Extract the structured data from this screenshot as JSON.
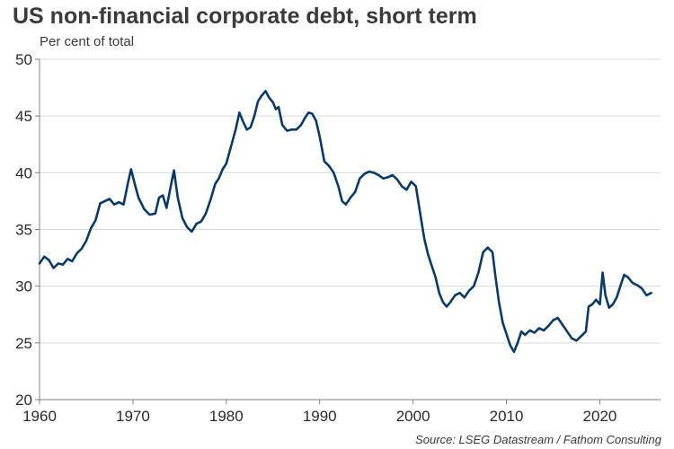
{
  "title": "US non-financial corporate debt, short term",
  "subtitle": "Per cent of total",
  "source": "Source: LSEG Datastream / Fathom Consulting",
  "colors": {
    "line": "#0b3a67",
    "grid": "#d9d9d9",
    "axis": "#7f7f7f",
    "text": "#3a3a3a"
  },
  "chart_data": {
    "type": "line",
    "title": "US non-financial corporate debt, short term",
    "ylabel": "Per cent of total",
    "xlim": [
      1960,
      2026.5
    ],
    "ylim": [
      20,
      50
    ],
    "x_ticks": [
      1960,
      1970,
      1980,
      1990,
      2000,
      2010,
      2020
    ],
    "y_ticks": [
      20,
      25,
      30,
      35,
      40,
      45,
      50
    ],
    "grid": "horizontal",
    "series": [
      {
        "values": [
          [
            1960.0,
            32.0
          ],
          [
            1960.5,
            32.6
          ],
          [
            1961.0,
            32.3
          ],
          [
            1961.5,
            31.6
          ],
          [
            1962.0,
            32.0
          ],
          [
            1962.5,
            31.9
          ],
          [
            1963.0,
            32.4
          ],
          [
            1963.5,
            32.2
          ],
          [
            1964.0,
            32.9
          ],
          [
            1964.5,
            33.3
          ],
          [
            1965.0,
            34.0
          ],
          [
            1965.5,
            35.1
          ],
          [
            1966.0,
            35.8
          ],
          [
            1966.5,
            37.3
          ],
          [
            1967.0,
            37.5
          ],
          [
            1967.5,
            37.7
          ],
          [
            1968.0,
            37.2
          ],
          [
            1968.5,
            37.4
          ],
          [
            1969.0,
            37.2
          ],
          [
            1969.5,
            39.2
          ],
          [
            1969.8,
            40.3
          ],
          [
            1970.2,
            39.0
          ],
          [
            1970.6,
            37.8
          ],
          [
            1971.2,
            36.8
          ],
          [
            1971.8,
            36.3
          ],
          [
            1972.4,
            36.4
          ],
          [
            1972.8,
            37.8
          ],
          [
            1973.2,
            38.0
          ],
          [
            1973.6,
            36.9
          ],
          [
            1974.0,
            38.6
          ],
          [
            1974.4,
            40.2
          ],
          [
            1974.8,
            37.8
          ],
          [
            1975.3,
            36.0
          ],
          [
            1975.8,
            35.2
          ],
          [
            1976.3,
            34.8
          ],
          [
            1976.8,
            35.5
          ],
          [
            1977.3,
            35.7
          ],
          [
            1977.8,
            36.4
          ],
          [
            1978.3,
            37.6
          ],
          [
            1978.8,
            39.0
          ],
          [
            1979.2,
            39.5
          ],
          [
            1979.6,
            40.3
          ],
          [
            1980.0,
            40.8
          ],
          [
            1980.5,
            42.3
          ],
          [
            1981.0,
            43.8
          ],
          [
            1981.4,
            45.3
          ],
          [
            1981.8,
            44.5
          ],
          [
            1982.2,
            43.8
          ],
          [
            1982.6,
            44.0
          ],
          [
            1983.0,
            45.0
          ],
          [
            1983.4,
            46.3
          ],
          [
            1983.8,
            46.8
          ],
          [
            1984.2,
            47.2
          ],
          [
            1984.6,
            46.6
          ],
          [
            1985.0,
            46.2
          ],
          [
            1985.3,
            45.6
          ],
          [
            1985.6,
            45.8
          ],
          [
            1986.0,
            44.2
          ],
          [
            1986.5,
            43.7
          ],
          [
            1987.0,
            43.8
          ],
          [
            1987.5,
            43.8
          ],
          [
            1988.0,
            44.2
          ],
          [
            1988.4,
            44.8
          ],
          [
            1988.8,
            45.3
          ],
          [
            1989.2,
            45.2
          ],
          [
            1989.6,
            44.6
          ],
          [
            1990.0,
            43.2
          ],
          [
            1990.5,
            41.0
          ],
          [
            1991.0,
            40.6
          ],
          [
            1991.5,
            40.0
          ],
          [
            1992.0,
            38.8
          ],
          [
            1992.4,
            37.5
          ],
          [
            1992.8,
            37.2
          ],
          [
            1993.3,
            37.8
          ],
          [
            1993.8,
            38.3
          ],
          [
            1994.3,
            39.5
          ],
          [
            1994.8,
            39.9
          ],
          [
            1995.3,
            40.1
          ],
          [
            1995.8,
            40.0
          ],
          [
            1996.3,
            39.8
          ],
          [
            1996.8,
            39.5
          ],
          [
            1997.3,
            39.6
          ],
          [
            1997.8,
            39.8
          ],
          [
            1998.3,
            39.4
          ],
          [
            1998.8,
            38.8
          ],
          [
            1999.3,
            38.5
          ],
          [
            1999.8,
            39.2
          ],
          [
            2000.3,
            38.8
          ],
          [
            2000.8,
            36.2
          ],
          [
            2001.2,
            34.2
          ],
          [
            2001.6,
            32.8
          ],
          [
            2002.0,
            31.8
          ],
          [
            2002.4,
            30.8
          ],
          [
            2002.8,
            29.4
          ],
          [
            2003.2,
            28.6
          ],
          [
            2003.6,
            28.2
          ],
          [
            2004.0,
            28.6
          ],
          [
            2004.5,
            29.2
          ],
          [
            2005.0,
            29.4
          ],
          [
            2005.5,
            29.0
          ],
          [
            2006.0,
            29.6
          ],
          [
            2006.5,
            30.0
          ],
          [
            2007.0,
            31.2
          ],
          [
            2007.5,
            33.0
          ],
          [
            2008.0,
            33.4
          ],
          [
            2008.5,
            33.0
          ],
          [
            2008.8,
            31.0
          ],
          [
            2009.2,
            28.6
          ],
          [
            2009.6,
            26.8
          ],
          [
            2010.0,
            25.8
          ],
          [
            2010.4,
            24.8
          ],
          [
            2010.8,
            24.2
          ],
          [
            2011.2,
            25.0
          ],
          [
            2011.6,
            26.0
          ],
          [
            2012.0,
            25.7
          ],
          [
            2012.5,
            26.1
          ],
          [
            2013.0,
            25.9
          ],
          [
            2013.5,
            26.3
          ],
          [
            2014.0,
            26.1
          ],
          [
            2014.5,
            26.5
          ],
          [
            2015.0,
            27.0
          ],
          [
            2015.5,
            27.2
          ],
          [
            2016.0,
            26.6
          ],
          [
            2016.5,
            26.0
          ],
          [
            2017.0,
            25.4
          ],
          [
            2017.5,
            25.2
          ],
          [
            2018.0,
            25.6
          ],
          [
            2018.5,
            26.0
          ],
          [
            2018.8,
            28.2
          ],
          [
            2019.2,
            28.4
          ],
          [
            2019.6,
            28.8
          ],
          [
            2020.0,
            28.4
          ],
          [
            2020.3,
            31.2
          ],
          [
            2020.6,
            29.2
          ],
          [
            2021.0,
            28.1
          ],
          [
            2021.4,
            28.4
          ],
          [
            2021.8,
            29.0
          ],
          [
            2022.2,
            30.0
          ],
          [
            2022.6,
            31.0
          ],
          [
            2023.0,
            30.8
          ],
          [
            2023.5,
            30.3
          ],
          [
            2024.0,
            30.1
          ],
          [
            2024.5,
            29.8
          ],
          [
            2025.0,
            29.2
          ],
          [
            2025.5,
            29.4
          ]
        ]
      }
    ]
  }
}
